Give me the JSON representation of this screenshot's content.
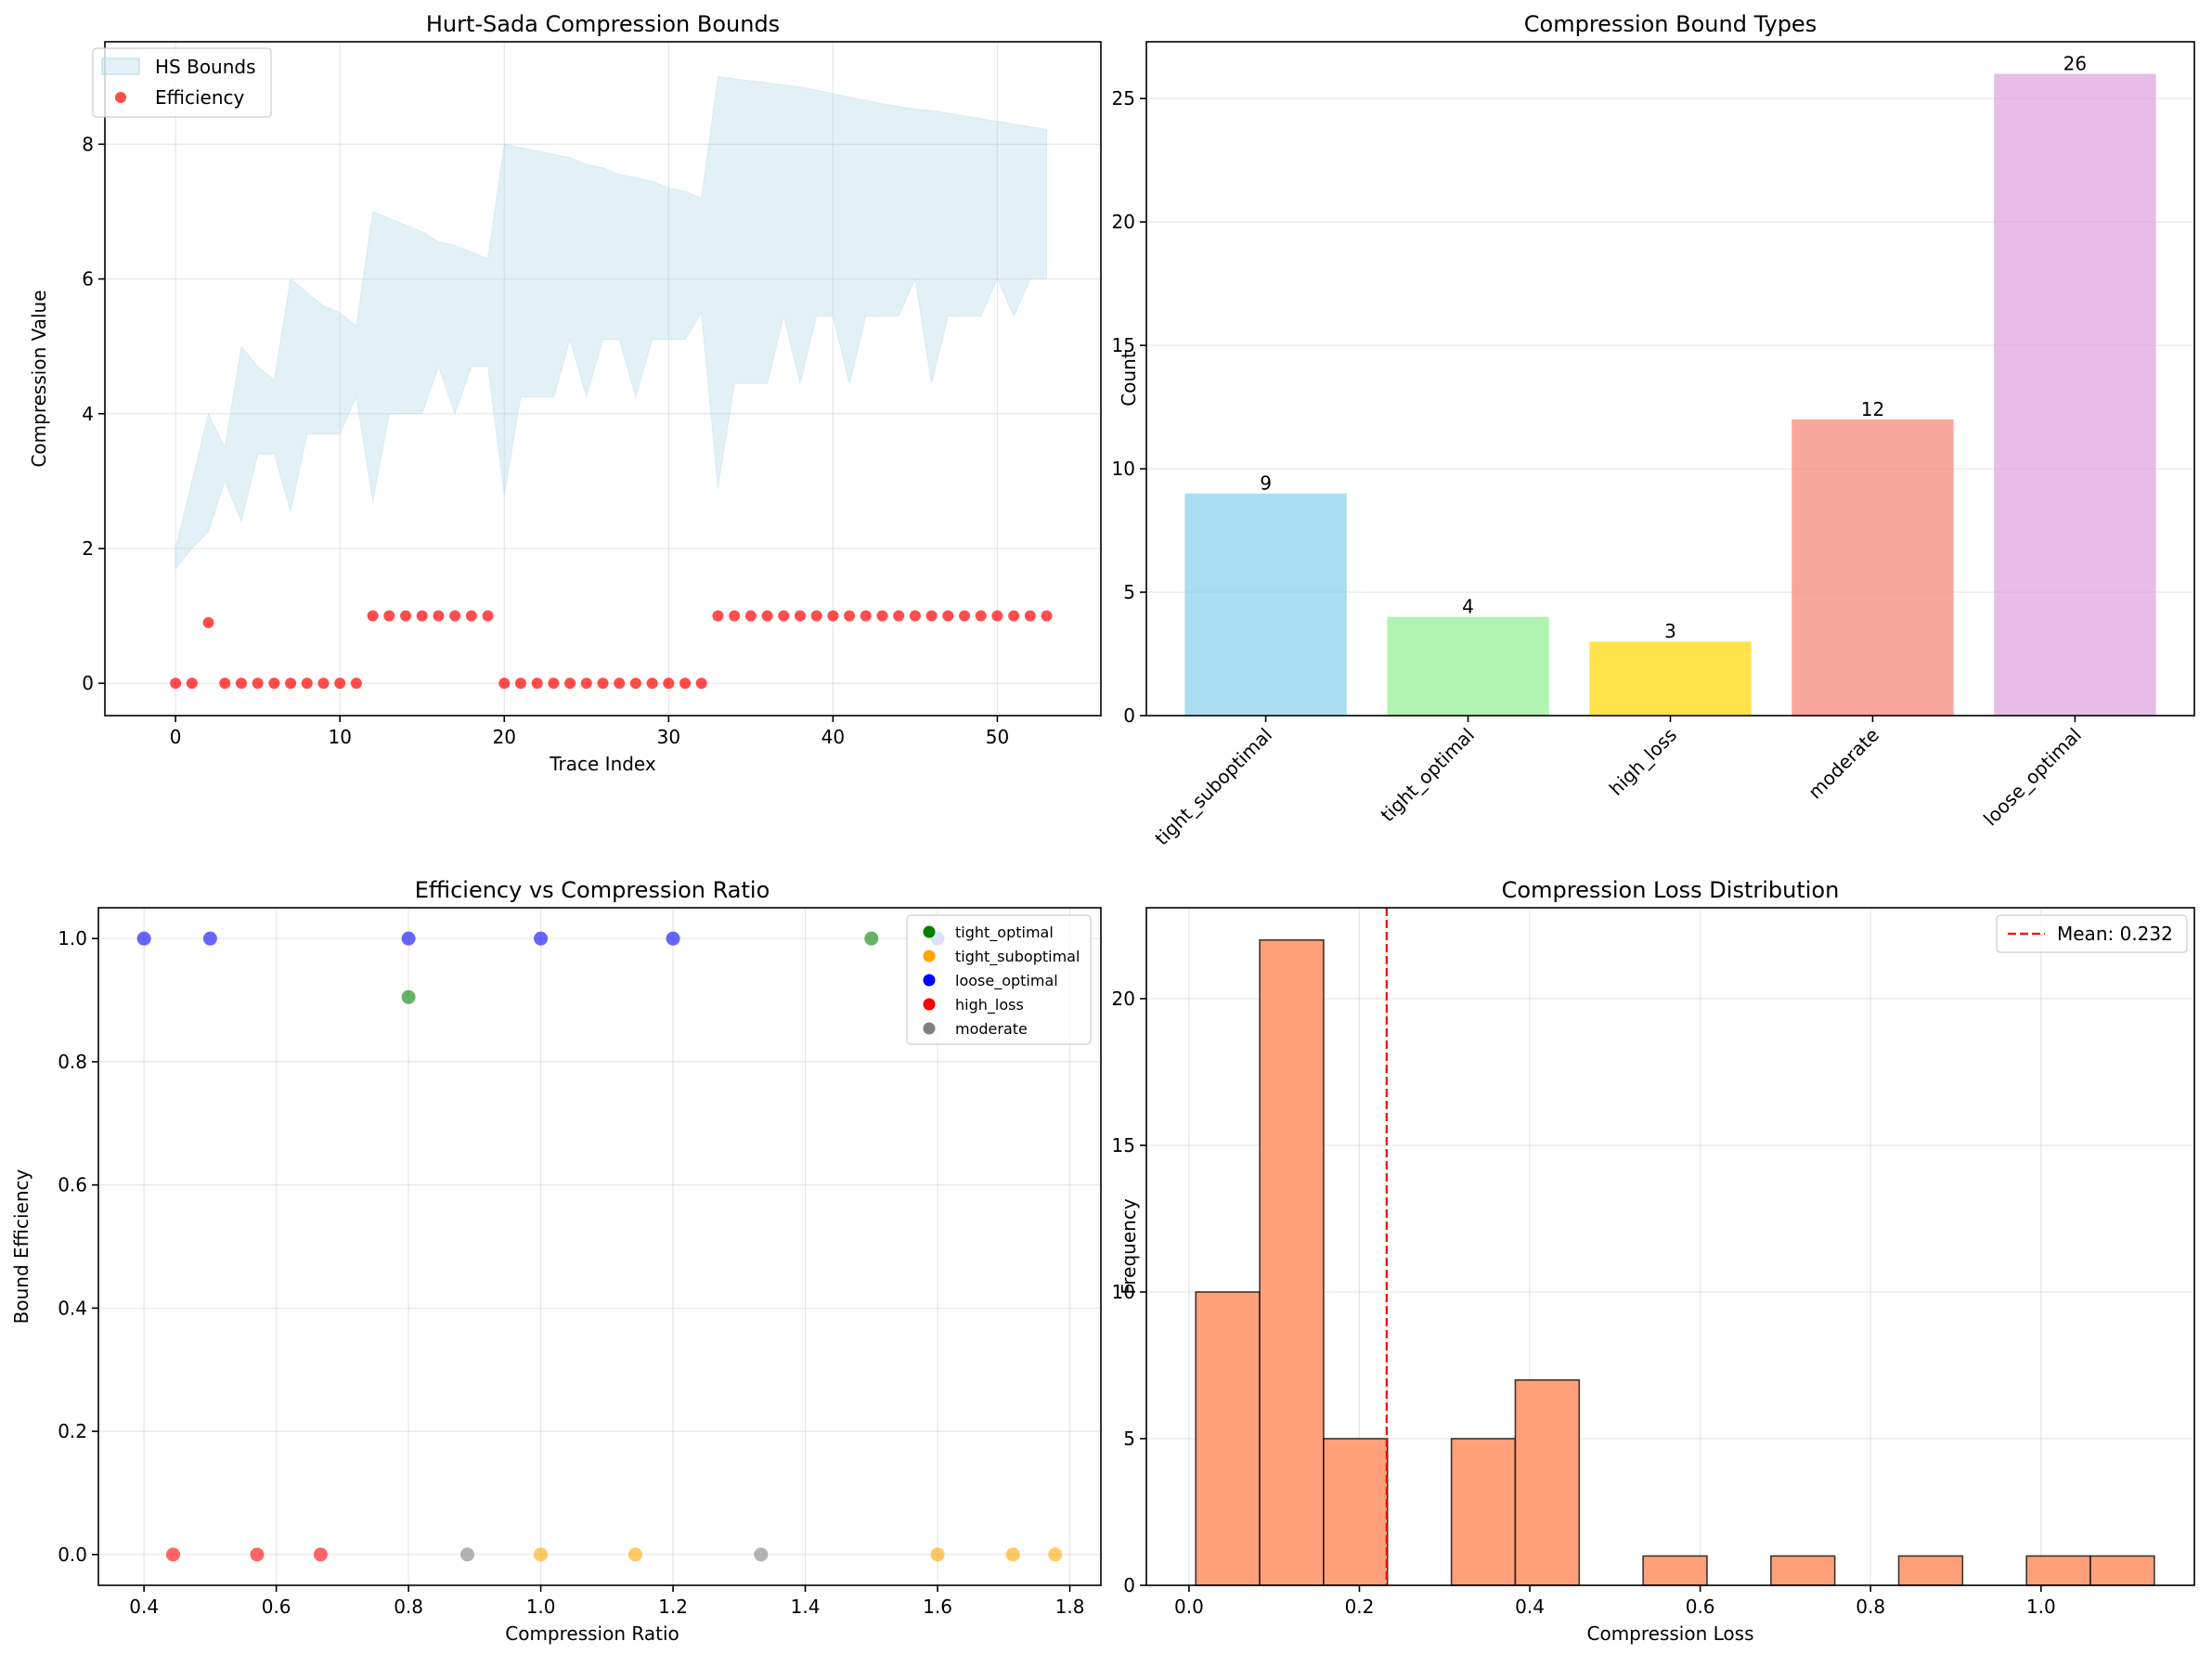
{
  "chart_data": [
    {
      "id": "hs",
      "type": "area+scatter",
      "title": "Hurt-Sada Compression Bounds",
      "xlabel": "Trace Index",
      "ylabel": "Compression Value",
      "xlim": [
        -4.3,
        56.3
      ],
      "ylim": [
        -0.48,
        9.52
      ],
      "xticks": [
        0,
        10,
        20,
        30,
        40,
        50
      ],
      "yticks": [
        0,
        2,
        4,
        6,
        8
      ],
      "legend": {
        "position": "top-left",
        "entries": [
          {
            "label": "HS Bounds",
            "kind": "patch"
          },
          {
            "label": "Efficiency",
            "kind": "marker"
          }
        ]
      },
      "x": [
        0,
        1,
        2,
        3,
        4,
        5,
        6,
        7,
        8,
        9,
        10,
        11,
        12,
        13,
        14,
        15,
        16,
        17,
        18,
        19,
        20,
        21,
        22,
        23,
        24,
        25,
        26,
        27,
        28,
        29,
        30,
        31,
        32,
        33,
        34,
        35,
        36,
        37,
        38,
        39,
        40,
        41,
        42,
        43,
        44,
        45,
        46,
        47,
        48,
        49,
        50,
        51,
        52,
        53
      ],
      "lower": [
        1.7,
        2.0,
        2.25,
        3.0,
        2.4,
        3.4,
        3.4,
        2.55,
        3.7,
        3.7,
        3.7,
        4.25,
        2.7,
        4.0,
        4.0,
        4.0,
        4.7,
        4.0,
        4.7,
        4.7,
        2.8,
        4.25,
        4.25,
        4.25,
        5.1,
        4.25,
        5.1,
        5.1,
        4.25,
        5.1,
        5.1,
        5.1,
        5.5,
        2.9,
        4.45,
        4.45,
        4.45,
        5.45,
        4.45,
        5.45,
        5.45,
        4.45,
        5.45,
        5.45,
        5.45,
        6.0,
        4.45,
        5.45,
        5.45,
        5.45,
        6.0,
        5.45,
        6.0,
        6.0
      ],
      "upper": [
        2.0,
        3.0,
        4.0,
        3.5,
        5.0,
        4.7,
        4.5,
        6.0,
        5.8,
        5.6,
        5.5,
        5.3,
        7.0,
        6.9,
        6.8,
        6.7,
        6.55,
        6.5,
        6.4,
        6.3,
        8.0,
        7.95,
        7.9,
        7.85,
        7.8,
        7.7,
        7.65,
        7.55,
        7.5,
        7.45,
        7.35,
        7.3,
        7.2,
        9.0,
        8.97,
        8.94,
        8.91,
        8.88,
        8.85,
        8.8,
        8.75,
        8.7,
        8.65,
        8.6,
        8.56,
        8.52,
        8.5,
        8.46,
        8.42,
        8.38,
        8.34,
        8.3,
        8.26,
        8.22
      ],
      "efficiency": [
        0,
        0,
        0.9,
        0,
        0,
        0,
        0,
        0,
        0,
        0,
        0,
        0,
        1,
        1,
        1,
        1,
        1,
        1,
        1,
        1,
        0,
        0,
        0,
        0,
        0,
        0,
        0,
        0,
        0,
        0,
        0,
        0,
        0,
        1,
        1,
        1,
        1,
        1,
        1,
        1,
        1,
        1,
        1,
        1,
        1,
        1,
        1,
        1,
        1,
        1,
        1,
        1,
        1,
        1
      ],
      "colors": {
        "area": "#add8e6",
        "points": "#ff0000"
      }
    },
    {
      "id": "types",
      "type": "bar",
      "title": "Compression Bound Types",
      "xlabel": "",
      "ylabel": "Count",
      "categories": [
        "tight_suboptimal",
        "tight_optimal",
        "high_loss",
        "moderate",
        "loose_optimal"
      ],
      "values": [
        9,
        4,
        3,
        12,
        26
      ],
      "value_labels": [
        "9",
        "4",
        "3",
        "12",
        "26"
      ],
      "colors": [
        "#87ceeb",
        "#90ee90",
        "#ffd700",
        "#fa8072",
        "#dda0dd"
      ],
      "ylim": [
        0,
        27.3
      ],
      "yticks": [
        0,
        5,
        10,
        15,
        20,
        25
      ]
    },
    {
      "id": "scatter",
      "type": "scatter",
      "title": "Efficiency vs Compression Ratio",
      "xlabel": "Compression Ratio",
      "ylabel": "Bound Efficiency",
      "xlim": [
        0.331,
        1.847
      ],
      "ylim": [
        -0.05,
        1.05
      ],
      "xticks": [
        0.4,
        0.6,
        0.8,
        1.0,
        1.2,
        1.4,
        1.6,
        1.8
      ],
      "yticks": [
        0.0,
        0.2,
        0.4,
        0.6,
        0.8,
        1.0
      ],
      "legend": {
        "position": "top-right"
      },
      "series": [
        {
          "name": "tight_optimal",
          "color": "#008000",
          "points": [
            [
              1.5,
              1.0
            ],
            [
              0.8,
              0.905
            ]
          ]
        },
        {
          "name": "tight_suboptimal",
          "color": "#ffa500",
          "points": [
            [
              1.0,
              0.0
            ],
            [
              1.143,
              0.0
            ],
            [
              1.6,
              0.0
            ],
            [
              1.714,
              0.0
            ],
            [
              1.778,
              0.0
            ]
          ]
        },
        {
          "name": "loose_optimal",
          "color": "#0000ff",
          "points": [
            [
              0.4,
              1.0
            ],
            [
              0.5,
              1.0
            ],
            [
              0.8,
              1.0
            ],
            [
              1.0,
              1.0
            ],
            [
              1.2,
              1.0
            ],
            [
              1.6,
              1.0
            ]
          ]
        },
        {
          "name": "high_loss",
          "color": "#ff0000",
          "points": [
            [
              0.444,
              0.0
            ],
            [
              0.571,
              0.0
            ],
            [
              0.667,
              0.0
            ]
          ]
        },
        {
          "name": "moderate",
          "color": "#808080",
          "points": [
            [
              0.889,
              0.0
            ],
            [
              1.333,
              0.0
            ]
          ]
        }
      ]
    },
    {
      "id": "hist",
      "type": "histogram",
      "title": "Compression Loss Distribution",
      "xlabel": "Compression Loss",
      "ylabel": "Frequency",
      "xlim": [
        -0.05,
        1.18
      ],
      "ylim": [
        0,
        23.1
      ],
      "xticks": [
        0.0,
        0.2,
        0.4,
        0.6,
        0.8,
        1.0
      ],
      "yticks": [
        0,
        5,
        10,
        15,
        20
      ],
      "bin_edges": [
        0.008,
        0.083,
        0.158,
        0.233,
        0.308,
        0.383,
        0.458,
        0.533,
        0.608,
        0.683,
        0.758,
        0.833,
        0.908,
        0.983,
        1.058,
        1.133
      ],
      "counts": [
        10,
        22,
        5,
        0,
        5,
        7,
        0,
        1,
        0,
        1,
        0,
        1,
        0,
        1,
        1
      ],
      "mean": 0.232,
      "mean_label": "Mean: 0.232",
      "colors": {
        "bar": "#ffa07a",
        "mean_line": "#ff0000"
      }
    }
  ]
}
